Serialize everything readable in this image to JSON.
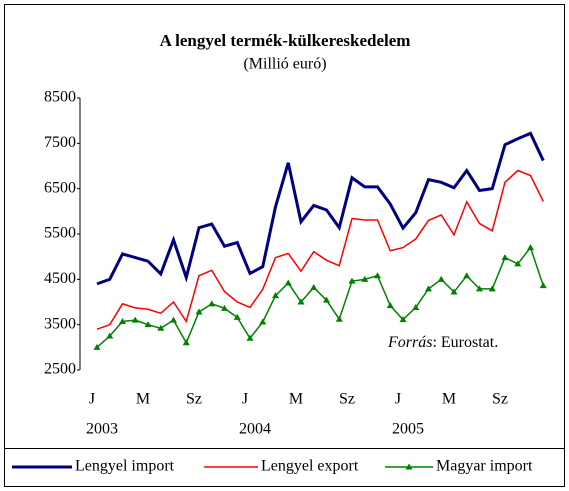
{
  "chart_data": {
    "type": "line",
    "title": "A lengyel termék-külkereskedelem",
    "subtitle": "(Millió euró)",
    "annotation_label": "Forrás",
    "annotation_text": ": Eurostat.",
    "categories": [
      "J",
      null,
      null,
      null,
      "M",
      null,
      null,
      null,
      "Sz",
      null,
      null,
      null,
      "J",
      null,
      null,
      null,
      "M",
      null,
      null,
      null,
      "Sz",
      null,
      null,
      null,
      "J",
      null,
      null,
      null,
      "M",
      null,
      null,
      null,
      "Sz",
      null,
      null,
      null
    ],
    "years": [
      "2003",
      null,
      null,
      null,
      null,
      null,
      null,
      null,
      null,
      null,
      null,
      null,
      "2004",
      null,
      null,
      null,
      null,
      null,
      null,
      null,
      null,
      null,
      null,
      null,
      "2005",
      null,
      null,
      null,
      null,
      null,
      null,
      null,
      null,
      null,
      null,
      null
    ],
    "ylim": [
      2500,
      8500
    ],
    "yticks": [
      2500,
      3500,
      4500,
      5500,
      6500,
      7500,
      8500
    ],
    "grid": false,
    "series": [
      {
        "name": "Lengyel import",
        "color": "#000080",
        "marker": "none",
        "values": [
          4400,
          4500,
          5060,
          4980,
          4900,
          4620,
          5370,
          4540,
          5640,
          5720,
          5230,
          5310,
          4630,
          4780,
          6100,
          7070,
          5770,
          6130,
          6030,
          5640,
          6740,
          6540,
          6540,
          6160,
          5630,
          5970,
          6700,
          6640,
          6520,
          6900,
          6460,
          6500,
          7470,
          7600,
          7720,
          7120
        ]
      },
      {
        "name": "Lengyel export",
        "color": "#ff0000",
        "marker": "none",
        "values": [
          3400,
          3500,
          3960,
          3870,
          3840,
          3750,
          4000,
          3570,
          4580,
          4700,
          4230,
          4000,
          3880,
          4280,
          4980,
          5070,
          4680,
          5110,
          4920,
          4800,
          5840,
          5810,
          5810,
          5130,
          5200,
          5390,
          5800,
          5920,
          5480,
          6210,
          5730,
          5570,
          6640,
          6900,
          6790,
          6220
        ]
      },
      {
        "name": "Magyar import",
        "color": "#008000",
        "marker": "triangle",
        "values": [
          3000,
          3250,
          3570,
          3600,
          3500,
          3420,
          3600,
          3100,
          3780,
          3960,
          3860,
          3660,
          3200,
          3560,
          4140,
          4420,
          4000,
          4320,
          4040,
          3620,
          4460,
          4500,
          4580,
          3920,
          3610,
          3880,
          4290,
          4500,
          4220,
          4580,
          4290,
          4290,
          4980,
          4840,
          5200,
          4360
        ]
      }
    ]
  }
}
